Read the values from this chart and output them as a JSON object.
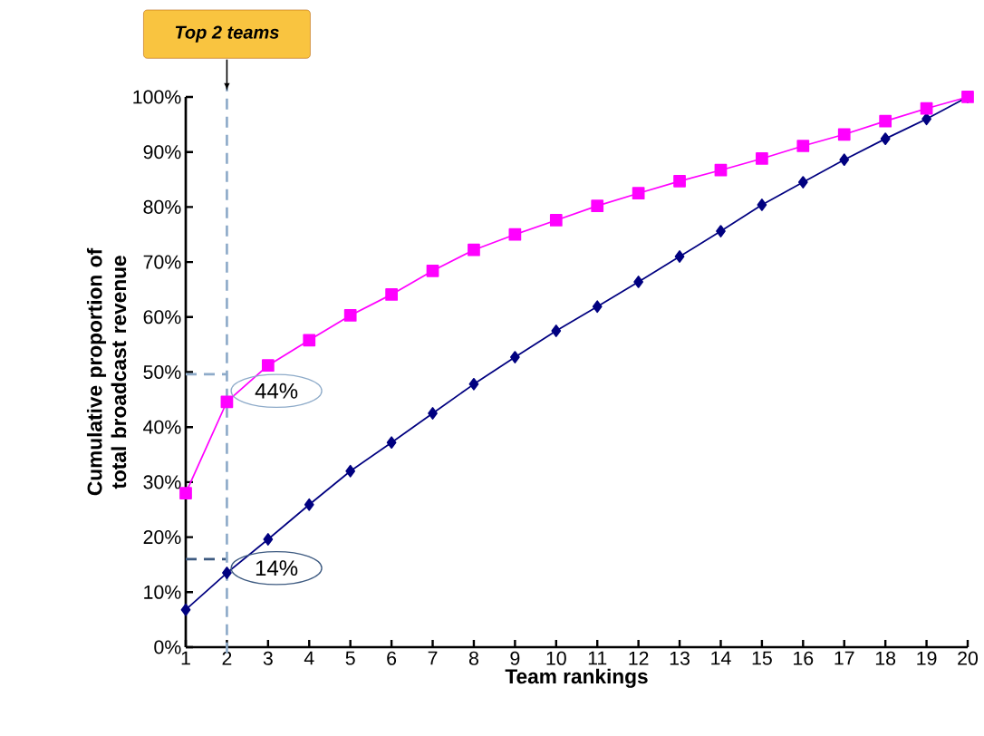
{
  "chart_data": {
    "type": "line",
    "xlabel": "Team rankings",
    "ylabel": "Cumulative proportion of total broadcast revenue",
    "x": [
      1,
      2,
      3,
      4,
      5,
      6,
      7,
      8,
      9,
      10,
      11,
      12,
      13,
      14,
      15,
      16,
      17,
      18,
      19,
      20
    ],
    "series": [
      {
        "color": "#000080",
        "marker": "diamond",
        "values": [
          6.8,
          13.5,
          19.6,
          25.9,
          32.0,
          37.2,
          42.5,
          47.8,
          52.7,
          57.5,
          61.9,
          66.4,
          71.0,
          75.6,
          80.4,
          84.5,
          88.6,
          92.4,
          96.0,
          100
        ]
      },
      {
        "color": "#ff00ff",
        "marker": "square",
        "values": [
          28.0,
          44.6,
          51.2,
          55.8,
          60.3,
          64.1,
          68.4,
          72.2,
          75.0,
          77.6,
          80.2,
          82.5,
          84.7,
          86.7,
          88.8,
          91.1,
          93.2,
          95.6,
          97.9,
          100
        ]
      },
      {
        "color": "#8eabc9",
        "marker": "none",
        "line_style": "dashed",
        "values": [
          49.6,
          49.6,
          null,
          null,
          null,
          null,
          null,
          null,
          null,
          null,
          null,
          null,
          null,
          null,
          null,
          null,
          null,
          null,
          null,
          null
        ]
      },
      {
        "color": "#3d5a80",
        "marker": "none",
        "line_style": "dashed",
        "values": [
          16,
          16,
          null,
          null,
          null,
          null,
          null,
          null,
          null,
          null,
          null,
          null,
          null,
          null,
          null,
          null,
          null,
          null,
          null,
          null
        ]
      }
    ],
    "xlim": [
      1,
      20
    ],
    "xticks": [
      1,
      2,
      3,
      4,
      5,
      6,
      7,
      8,
      9,
      10,
      11,
      12,
      13,
      14,
      15,
      16,
      17,
      18,
      19,
      20
    ],
    "ylim": [
      0,
      100
    ],
    "yticks": [
      {
        "value": 0,
        "label": "0%"
      },
      {
        "value": 10,
        "label": "10%"
      },
      {
        "value": 20,
        "label": "20%"
      },
      {
        "value": 30,
        "label": "30%"
      },
      {
        "value": 40,
        "label": "40%"
      },
      {
        "value": 50,
        "label": "50%"
      },
      {
        "value": 60,
        "label": "60%"
      },
      {
        "value": 70,
        "label": "70%"
      },
      {
        "value": 80,
        "label": "80%"
      },
      {
        "value": 90,
        "label": "90%"
      },
      {
        "value": 100,
        "label": "100%"
      }
    ],
    "ref_lines": [
      {
        "axis": "x",
        "value": 2,
        "label": "Top 2 teams",
        "color": "#8eabc9",
        "line_style": "dashed"
      }
    ],
    "annotations": [
      {
        "text": "44%",
        "x": 2,
        "y": 44.6
      },
      {
        "text": "14%",
        "x": 2,
        "y": 13.5
      }
    ],
    "grid": false,
    "line_style": "solid"
  }
}
